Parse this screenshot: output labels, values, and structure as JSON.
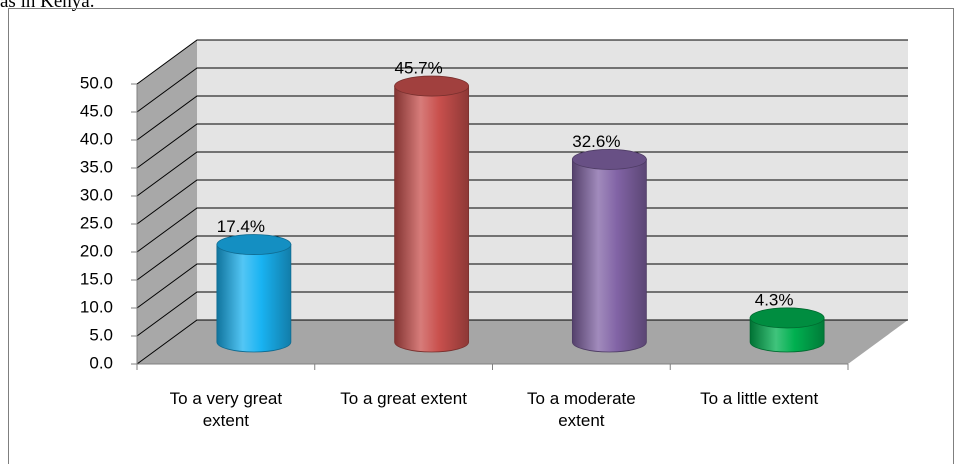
{
  "text": "as in Kenya.",
  "chart_data": {
    "type": "cylinder",
    "categories": [
      "To a very great extent",
      "To a great extent",
      "To a moderate extent",
      "To a little extent"
    ],
    "values": [
      17.4,
      45.7,
      32.6,
      4.3
    ],
    "value_labels": [
      "17.4%",
      "45.7%",
      "32.6%",
      "4.3%"
    ],
    "colors": [
      "#19b3f2",
      "#c9504d",
      "#8264a6",
      "#00b050"
    ],
    "ylim": [
      0,
      50
    ],
    "yticks": [
      {
        "value": 0,
        "label": "0.0"
      },
      {
        "value": 5,
        "label": "5.0"
      },
      {
        "value": 10,
        "label": "10.0"
      },
      {
        "value": 15,
        "label": "15.0"
      },
      {
        "value": 20,
        "label": "20.0"
      },
      {
        "value": 25,
        "label": "25.0"
      },
      {
        "value": 30,
        "label": "30.0"
      },
      {
        "value": 35,
        "label": "35.0"
      },
      {
        "value": 40,
        "label": "40.0"
      },
      {
        "value": 45,
        "label": "45.0"
      },
      {
        "value": 50,
        "label": "50.0"
      }
    ],
    "grid": true
  }
}
